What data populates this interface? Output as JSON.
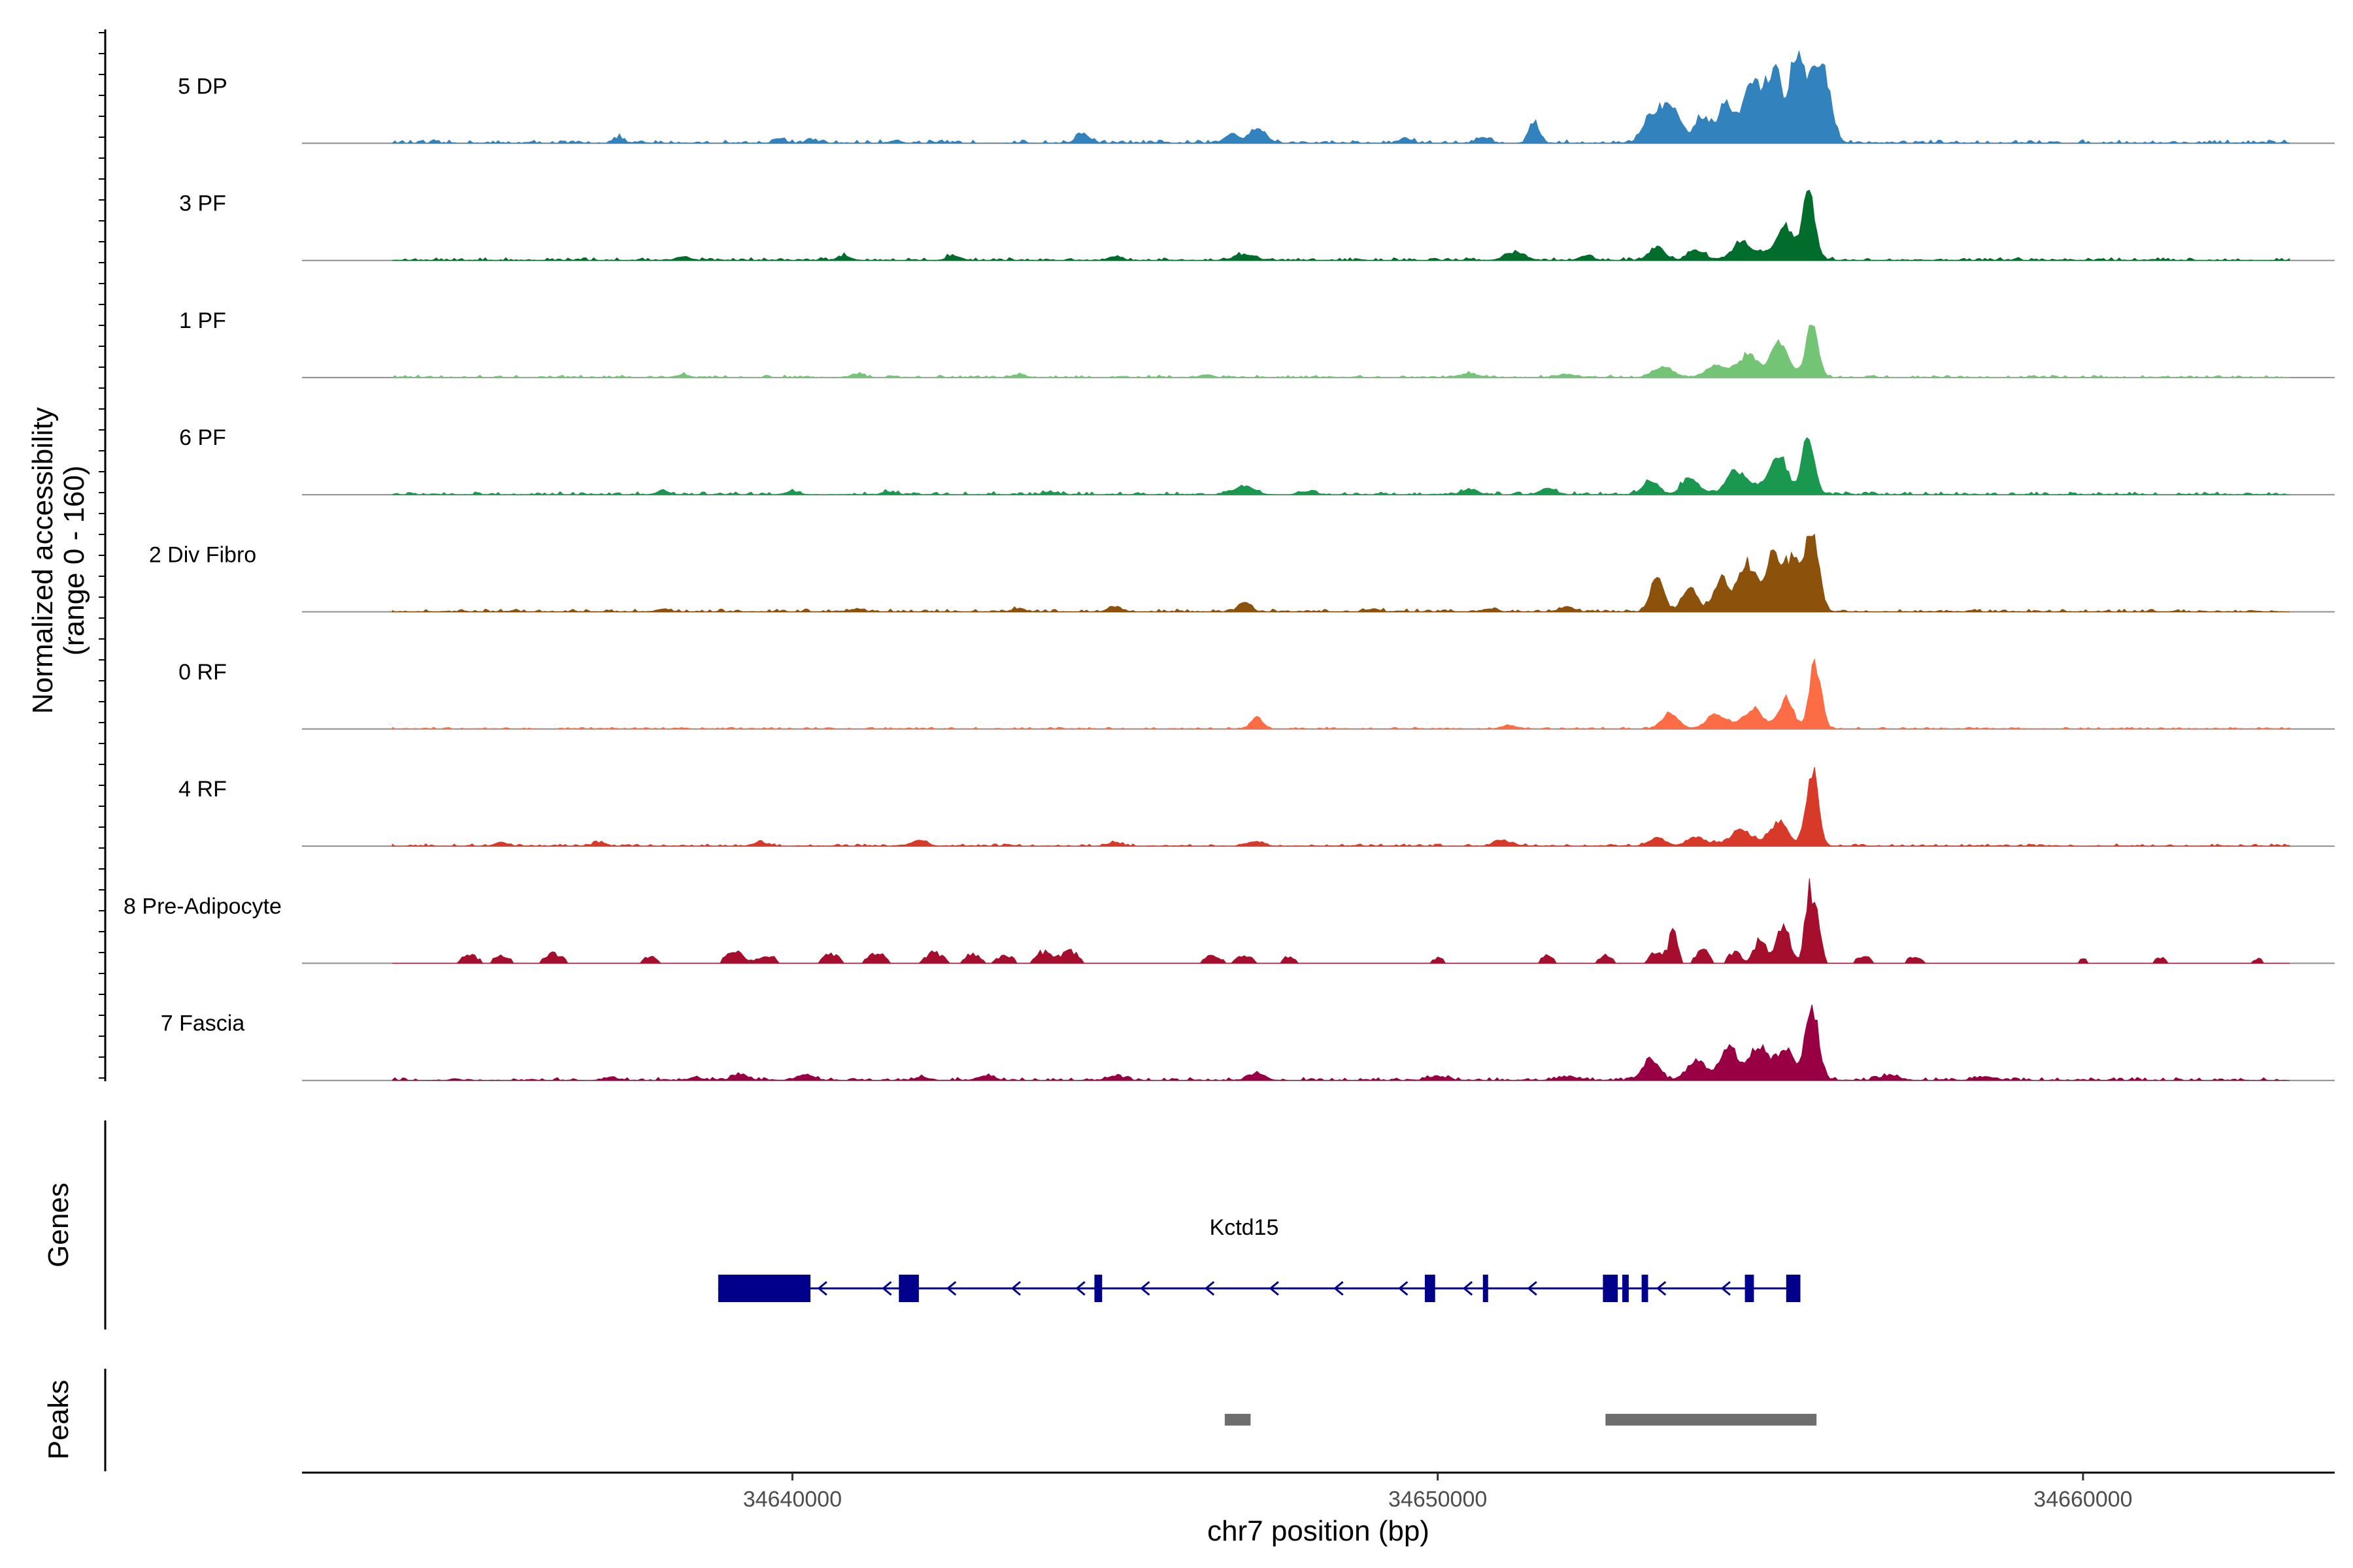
{
  "chart_data": {
    "type": "area",
    "title": "",
    "xlabel": "chr7 position (bp)",
    "ylabel_line1": "Normalized accessibility",
    "ylabel_line2": "(range 0 - 160)",
    "ylim": [
      0,
      160
    ],
    "xlim": [
      34632400,
      34663900
    ],
    "x_ticks": [
      34640000,
      34650000,
      34660000
    ],
    "x_tick_labels": [
      "34640000",
      "34650000",
      "34660000"
    ],
    "tracks_label_genes": "Genes",
    "tracks_label_peaks": "Peaks",
    "series": [
      {
        "name": "5 DP",
        "color": "#3182bd",
        "noise": 0.06,
        "sparse": false,
        "peaks": [
          [
            34637300,
            9,
            80
          ],
          [
            34639800,
            9,
            80
          ],
          [
            34640300,
            6,
            80
          ],
          [
            34641600,
            5,
            80
          ],
          [
            34644500,
            16,
            100
          ],
          [
            34646800,
            16,
            100
          ],
          [
            34647200,
            26,
            130
          ],
          [
            34649500,
            8,
            100
          ],
          [
            34650700,
            10,
            100
          ],
          [
            34651500,
            36,
            80
          ],
          [
            34653300,
            42,
            130
          ],
          [
            34653600,
            70,
            140
          ],
          [
            34654100,
            45,
            110
          ],
          [
            34654450,
            60,
            110
          ],
          [
            34654800,
            50,
            110
          ],
          [
            34655000,
            60,
            110
          ],
          [
            34655250,
            80,
            100
          ],
          [
            34655550,
            140,
            90
          ],
          [
            34655800,
            120,
            90
          ],
          [
            34656000,
            100,
            110
          ],
          [
            34655150,
            30,
            400
          ]
        ]
      },
      {
        "name": "3 PF",
        "color": "#006d2c",
        "noise": 0.05,
        "sparse": false,
        "peaks": [
          [
            34638300,
            6,
            100
          ],
          [
            34640800,
            7,
            100
          ],
          [
            34642500,
            8,
            100
          ],
          [
            34645000,
            7,
            100
          ],
          [
            34647000,
            10,
            150
          ],
          [
            34651200,
            14,
            150
          ],
          [
            34652300,
            8,
            100
          ],
          [
            34653400,
            22,
            120
          ],
          [
            34654000,
            18,
            120
          ],
          [
            34654700,
            22,
            120
          ],
          [
            34655400,
            46,
            120
          ],
          [
            34655750,
            110,
            90
          ],
          [
            34655100,
            15,
            400
          ]
        ]
      },
      {
        "name": "1 PF",
        "color": "#74c476",
        "noise": 0.04,
        "sparse": false,
        "peaks": [
          [
            34638300,
            5,
            100
          ],
          [
            34641000,
            6,
            100
          ],
          [
            34643500,
            5,
            100
          ],
          [
            34646400,
            4,
            100
          ],
          [
            34650500,
            6,
            150
          ],
          [
            34652000,
            5,
            150
          ],
          [
            34653500,
            18,
            150
          ],
          [
            34654300,
            18,
            150
          ],
          [
            34654800,
            28,
            130
          ],
          [
            34655300,
            50,
            120
          ],
          [
            34655800,
            95,
            90
          ],
          [
            34655000,
            12,
            400
          ]
        ]
      },
      {
        "name": "6 PF",
        "color": "#1a9850",
        "noise": 0.05,
        "sparse": false,
        "peaks": [
          [
            34638000,
            6,
            100
          ],
          [
            34640000,
            6,
            100
          ],
          [
            34641500,
            5,
            100
          ],
          [
            34644000,
            5,
            100
          ],
          [
            34647000,
            14,
            150
          ],
          [
            34648000,
            6,
            100
          ],
          [
            34650500,
            8,
            120
          ],
          [
            34651700,
            10,
            120
          ],
          [
            34653300,
            24,
            120
          ],
          [
            34653900,
            28,
            120
          ],
          [
            34654600,
            30,
            120
          ],
          [
            34655300,
            50,
            120
          ],
          [
            34655750,
            100,
            90
          ],
          [
            34655000,
            18,
            400
          ]
        ]
      },
      {
        "name": "2 Div Fibro",
        "color": "#8c510a",
        "noise": 0.05,
        "sparse": false,
        "peaks": [
          [
            34638000,
            5,
            100
          ],
          [
            34641000,
            5,
            100
          ],
          [
            34643500,
            5,
            100
          ],
          [
            34645000,
            8,
            100
          ],
          [
            34647000,
            16,
            90
          ],
          [
            34649000,
            5,
            100
          ],
          [
            34650800,
            5,
            100
          ],
          [
            34652000,
            8,
            120
          ],
          [
            34653400,
            55,
            100
          ],
          [
            34653900,
            35,
            120
          ],
          [
            34654400,
            45,
            120
          ],
          [
            34654800,
            60,
            120
          ],
          [
            34655200,
            70,
            110
          ],
          [
            34655500,
            80,
            110
          ],
          [
            34655800,
            140,
            100
          ],
          [
            34655000,
            25,
            400
          ]
        ]
      },
      {
        "name": "0 RF",
        "color": "#fc6c45",
        "noise": 0.03,
        "sparse": false,
        "peaks": [
          [
            34647200,
            20,
            90
          ],
          [
            34651100,
            6,
            120
          ],
          [
            34653600,
            28,
            120
          ],
          [
            34654300,
            20,
            120
          ],
          [
            34654900,
            25,
            120
          ],
          [
            34655400,
            50,
            110
          ],
          [
            34655850,
            110,
            90
          ],
          [
            34654700,
            10,
            400
          ]
        ]
      },
      {
        "name": "4 RF",
        "color": "#d83a2a",
        "noise": 0.04,
        "sparse": false,
        "peaks": [
          [
            34635500,
            6,
            100
          ],
          [
            34637000,
            6,
            100
          ],
          [
            34639500,
            6,
            100
          ],
          [
            34642000,
            10,
            100
          ],
          [
            34645000,
            6,
            100
          ],
          [
            34647200,
            8,
            100
          ],
          [
            34651000,
            10,
            120
          ],
          [
            34653400,
            14,
            130
          ],
          [
            34654000,
            14,
            130
          ],
          [
            34654700,
            16,
            130
          ],
          [
            34655300,
            38,
            120
          ],
          [
            34655800,
            130,
            90
          ],
          [
            34654800,
            10,
            400
          ]
        ]
      },
      {
        "name": "8 Pre-Adipocyte",
        "color": "#a50f2d",
        "noise": 0.0,
        "sparse": true,
        "peaks": [
          [
            34635000,
            16,
            120
          ],
          [
            34635500,
            14,
            120
          ],
          [
            34636300,
            18,
            130
          ],
          [
            34637800,
            14,
            100
          ],
          [
            34639100,
            25,
            130
          ],
          [
            34639600,
            16,
            130
          ],
          [
            34640600,
            18,
            130
          ],
          [
            34641300,
            20,
            130
          ],
          [
            34642200,
            20,
            130
          ],
          [
            34642800,
            17,
            130
          ],
          [
            34643300,
            16,
            120
          ],
          [
            34643900,
            22,
            130
          ],
          [
            34644300,
            25,
            120
          ],
          [
            34646500,
            15,
            130
          ],
          [
            34647000,
            16,
            120
          ],
          [
            34647700,
            14,
            100
          ],
          [
            34650000,
            10,
            100
          ],
          [
            34651700,
            14,
            100
          ],
          [
            34652600,
            16,
            100
          ],
          [
            34653400,
            22,
            100
          ],
          [
            34653650,
            55,
            70
          ],
          [
            34654100,
            26,
            100
          ],
          [
            34654600,
            20,
            100
          ],
          [
            34655000,
            48,
            90
          ],
          [
            34655350,
            80,
            90
          ],
          [
            34655800,
            150,
            90
          ],
          [
            34656600,
            12,
            130
          ],
          [
            34657400,
            14,
            100
          ],
          [
            34660000,
            8,
            100
          ],
          [
            34661200,
            10,
            100
          ],
          [
            34662700,
            8,
            100
          ]
        ]
      },
      {
        "name": "7 Fascia",
        "color": "#980043",
        "noise": 0.05,
        "sparse": false,
        "peaks": [
          [
            34637200,
            5,
            100
          ],
          [
            34638500,
            5,
            100
          ],
          [
            34639200,
            10,
            120
          ],
          [
            34640200,
            10,
            120
          ],
          [
            34642000,
            6,
            100
          ],
          [
            34643000,
            8,
            120
          ],
          [
            34645000,
            8,
            120
          ],
          [
            34647200,
            12,
            120
          ],
          [
            34650000,
            6,
            150
          ],
          [
            34652000,
            6,
            150
          ],
          [
            34653300,
            34,
            130
          ],
          [
            34654000,
            30,
            130
          ],
          [
            34654500,
            40,
            120
          ],
          [
            34655000,
            38,
            120
          ],
          [
            34655400,
            48,
            120
          ],
          [
            34655800,
            125,
            100
          ],
          [
            34654800,
            22,
            400
          ],
          [
            34657000,
            8,
            150
          ],
          [
            34658500,
            6,
            150
          ]
        ]
      }
    ],
    "gene": {
      "name": "Kctd15",
      "strand": "-",
      "start": 34638850,
      "end": 34655620,
      "exons": [
        [
          34638850,
          34640280
        ],
        [
          34641650,
          34641960
        ],
        [
          34644680,
          34644800
        ],
        [
          34649800,
          34649960
        ],
        [
          34650700,
          34650780
        ],
        [
          34652560,
          34652790
        ],
        [
          34652860,
          34652960
        ],
        [
          34653160,
          34653260
        ],
        [
          34654760,
          34654900
        ],
        [
          34655400,
          34655620
        ]
      ],
      "color": "#00008b"
    },
    "peaks": [
      {
        "start": 34646700,
        "end": 34647100
      },
      {
        "start": 34652600,
        "end": 34655870
      }
    ],
    "peak_color": "#6e6e6e"
  }
}
